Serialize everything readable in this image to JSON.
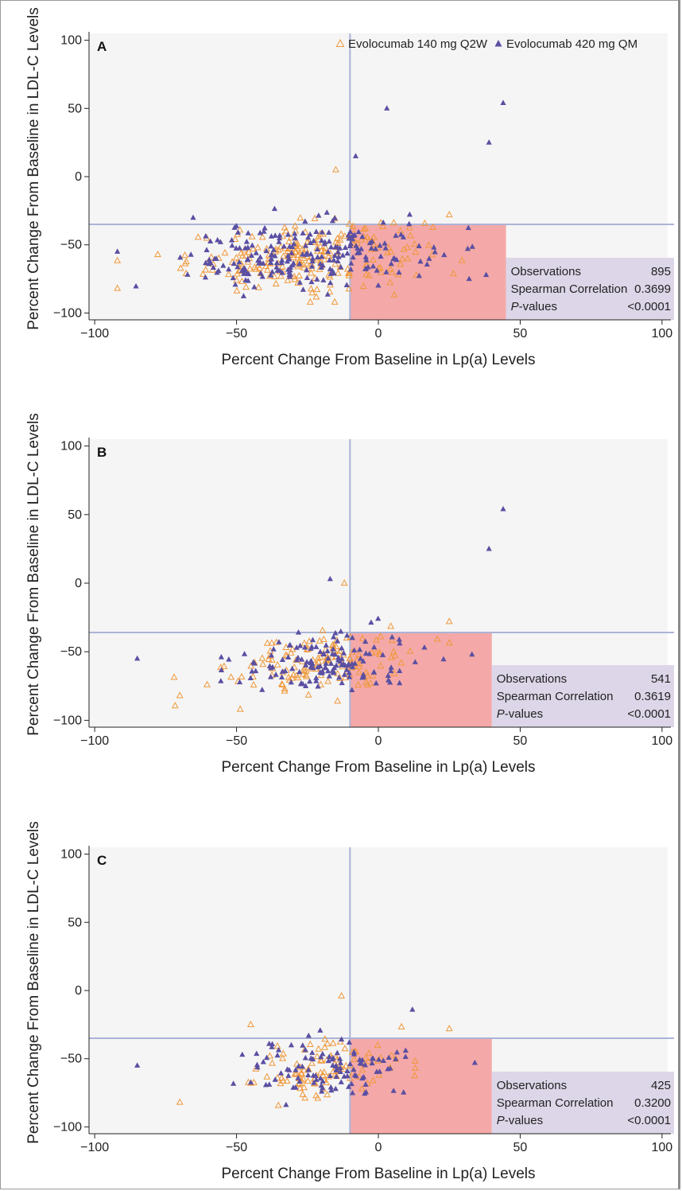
{
  "colors": {
    "q2w": "#f0983a",
    "qm": "#5a4fa2",
    "plot_bg": "#f5f5f5",
    "ref_line": "#aab4d6",
    "shade": "#f4a9a8",
    "stats_bg": "#dcd6e8"
  },
  "legend": {
    "series": [
      {
        "name": "Evolocumab 140 mg Q2W",
        "marker": "open-triangle",
        "color_key": "q2w"
      },
      {
        "name": "Evolocumab 420 mg QM",
        "marker": "filled-triangle",
        "color_key": "qm"
      }
    ],
    "placement": "top-right of panel A"
  },
  "chart_data": [
    {
      "type": "scatter",
      "panel": "A",
      "xlabel": "Percent Change From Baseline in Lp(a) Levels",
      "ylabel": "Percent Change From Baseline in LDL-C Levels",
      "xlim": [
        -102,
        102
      ],
      "ylim": [
        -105,
        105
      ],
      "xticks": [
        -100,
        -50,
        0,
        50,
        100
      ],
      "yticks": [
        100,
        50,
        0,
        -50,
        -100
      ],
      "x_ref": -10,
      "y_ref": -35,
      "shade_x": [
        -10,
        45
      ],
      "stats": {
        "observations_label": "Observations",
        "observations": "895",
        "correlation_label": "Spearman Correlation",
        "correlation": "0.3699",
        "p_label_italic": "P",
        "p_label_rest": "-values",
        "p_value": "<0.0001"
      },
      "generator": {
        "n_q2w": 230,
        "n_qm": 230,
        "cx": -25,
        "sx": 21,
        "cy": -58,
        "sy": 12,
        "xmin": -92,
        "xmax": 40,
        "extra_qm": [
          [
            44,
            54
          ],
          [
            39,
            25
          ],
          [
            3,
            50
          ],
          [
            -8,
            15
          ],
          [
            -92,
            -55
          ],
          [
            32,
            -75
          ]
        ],
        "extra_q2w": [
          [
            -92,
            -82
          ],
          [
            -15,
            5
          ],
          [
            25,
            -28
          ]
        ]
      }
    },
    {
      "type": "scatter",
      "panel": "B",
      "xlabel": "Percent Change From Baseline in Lp(a) Levels",
      "ylabel": "Percent Change From Baseline in LDL-C Levels",
      "xlim": [
        -102,
        102
      ],
      "ylim": [
        -105,
        105
      ],
      "xticks": [
        -100,
        -50,
        0,
        50,
        100
      ],
      "yticks": [
        100,
        50,
        0,
        -50,
        -100
      ],
      "x_ref": -10,
      "y_ref": -36,
      "shade_x": [
        -10,
        40
      ],
      "stats": {
        "observations_label": "Observations",
        "observations": "541",
        "correlation_label": "Spearman Correlation",
        "correlation": "0.3619",
        "p_label_italic": "P",
        "p_label_rest": "-values",
        "p_value": "<0.0001"
      },
      "generator": {
        "n_q2w": 140,
        "n_qm": 140,
        "cx": -20,
        "sx": 16,
        "cy": -58,
        "sy": 11,
        "xmin": -72,
        "xmax": 36,
        "extra_qm": [
          [
            44,
            54
          ],
          [
            39,
            25
          ],
          [
            -17,
            3
          ],
          [
            -85,
            -55
          ],
          [
            33,
            -52
          ]
        ],
        "extra_q2w": [
          [
            -70,
            -82
          ],
          [
            -12,
            0
          ],
          [
            25,
            -28
          ]
        ]
      }
    },
    {
      "type": "scatter",
      "panel": "C",
      "xlabel": "Percent Change From Baseline in Lp(a) Levels",
      "ylabel": "Percent Change From Baseline in LDL-C Levels",
      "xlim": [
        -102,
        102
      ],
      "ylim": [
        -105,
        105
      ],
      "xticks": [
        -100,
        -50,
        0,
        50,
        100
      ],
      "yticks": [
        100,
        50,
        0,
        -50,
        -100
      ],
      "x_ref": -10,
      "y_ref": -35,
      "shade_x": [
        -10,
        40
      ],
      "stats": {
        "observations_label": "Observations",
        "observations": "425",
        "correlation_label": "Spearman Correlation",
        "correlation": "0.3200",
        "p_label_italic": "P",
        "p_label_rest": "-values",
        "p_value": "<0.0001"
      },
      "generator": {
        "n_q2w": 110,
        "n_qm": 110,
        "cx": -18,
        "sx": 14,
        "cy": -58,
        "sy": 11,
        "xmin": -70,
        "xmax": 34,
        "extra_qm": [
          [
            -85,
            -55
          ],
          [
            12,
            -14
          ],
          [
            34,
            -53
          ]
        ],
        "extra_q2w": [
          [
            -70,
            -82
          ],
          [
            -13,
            -4
          ],
          [
            25,
            -28
          ],
          [
            -45,
            -25
          ]
        ]
      }
    }
  ]
}
